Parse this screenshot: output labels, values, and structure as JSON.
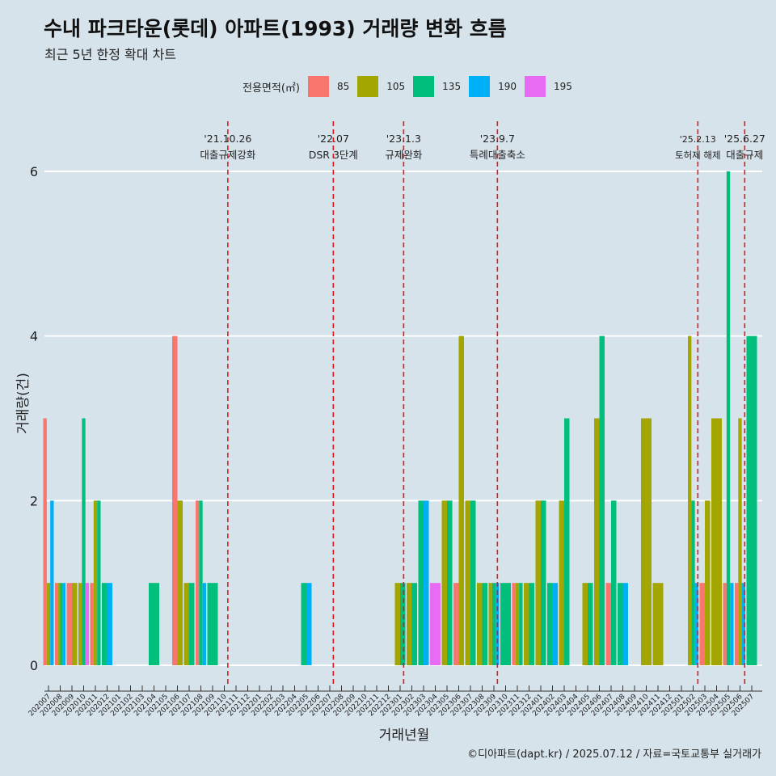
{
  "header": {
    "title": "수내 파크타운(롯데) 아파트(1993) 거래량 변화 흐름",
    "subtitle": "최근 5년 한정 확대 차트"
  },
  "caption": "©디아파트(dapt.kr) / 2025.07.12 / 자료=국토교통부 실거래가",
  "legend": {
    "title": "전용면적(㎡)",
    "items": [
      {
        "label": "85",
        "color": "#f8766d"
      },
      {
        "label": "105",
        "color": "#a3a500"
      },
      {
        "label": "135",
        "color": "#00bf7d"
      },
      {
        "label": "190",
        "color": "#00b0f6"
      },
      {
        "label": "195",
        "color": "#e76bf3"
      }
    ]
  },
  "chart_data": {
    "type": "bar",
    "xlabel": "거래년월",
    "ylabel": "거래량(건)",
    "ylim": [
      -0.5,
      6.5
    ],
    "yticks": [
      0,
      2,
      4,
      6
    ],
    "grid": true,
    "legend_position": "top",
    "categories": [
      "202007",
      "202008",
      "202009",
      "202010",
      "202011",
      "202012",
      "202101",
      "202102",
      "202103",
      "202104",
      "202105",
      "202106",
      "202107",
      "202108",
      "202109",
      "202110",
      "202111",
      "202112",
      "202201",
      "202202",
      "202203",
      "202204",
      "202205",
      "202206",
      "202207",
      "202208",
      "202209",
      "202210",
      "202211",
      "202212",
      "202301",
      "202302",
      "202303",
      "202304",
      "202305",
      "202306",
      "202307",
      "202308",
      "202309",
      "202310",
      "202311",
      "202312",
      "202401",
      "202402",
      "202403",
      "202404",
      "202405",
      "202406",
      "202407",
      "202408",
      "202409",
      "202410",
      "202411",
      "202412",
      "202501",
      "202502",
      "202503",
      "202504",
      "202505",
      "202506",
      "202507"
    ],
    "series": [
      {
        "name": "85",
        "values": [
          3,
          1,
          1,
          0,
          1,
          0,
          0,
          0,
          0,
          0,
          0,
          4,
          0,
          2,
          0,
          0,
          0,
          0,
          0,
          0,
          0,
          0,
          0,
          0,
          0,
          0,
          0,
          0,
          0,
          0,
          0,
          0,
          0,
          0,
          0,
          1,
          0,
          0,
          0,
          0,
          1,
          0,
          0,
          0,
          0,
          0,
          0,
          0,
          1,
          0,
          0,
          0,
          0,
          0,
          0,
          0,
          1,
          0,
          1,
          1,
          0
        ]
      },
      {
        "name": "105",
        "values": [
          1,
          1,
          1,
          1,
          2,
          0,
          0,
          0,
          0,
          0,
          0,
          2,
          1,
          0,
          0,
          0,
          0,
          0,
          0,
          0,
          0,
          0,
          0,
          0,
          0,
          0,
          0,
          0,
          0,
          0,
          1,
          1,
          0,
          0,
          2,
          4,
          2,
          1,
          1,
          0,
          1,
          1,
          2,
          0,
          2,
          0,
          1,
          3,
          0,
          0,
          0,
          3,
          1,
          0,
          0,
          4,
          2,
          3,
          0,
          3,
          0
        ]
      },
      {
        "name": "135",
        "values": [
          0,
          1,
          0,
          3,
          2,
          1,
          0,
          0,
          0,
          1,
          0,
          0,
          1,
          2,
          1,
          0,
          0,
          0,
          0,
          0,
          0,
          0,
          1,
          0,
          0,
          0,
          0,
          0,
          0,
          0,
          1,
          1,
          2,
          0,
          2,
          0,
          2,
          1,
          1,
          1,
          1,
          1,
          2,
          1,
          3,
          0,
          1,
          4,
          2,
          1,
          0,
          0,
          0,
          0,
          0,
          2,
          0,
          0,
          6,
          0,
          4
        ]
      },
      {
        "name": "190",
        "values": [
          2,
          1,
          0,
          0,
          0,
          1,
          0,
          0,
          0,
          0,
          0,
          0,
          0,
          1,
          0,
          0,
          0,
          0,
          0,
          0,
          0,
          0,
          1,
          0,
          0,
          0,
          0,
          0,
          0,
          0,
          0,
          0,
          2,
          0,
          0,
          0,
          0,
          0,
          1,
          0,
          0,
          0,
          0,
          1,
          0,
          0,
          0,
          0,
          0,
          1,
          0,
          0,
          0,
          0,
          0,
          1,
          0,
          0,
          1,
          1,
          0
        ]
      },
      {
        "name": "195",
        "values": [
          0,
          0,
          0,
          1,
          0,
          0,
          0,
          0,
          0,
          0,
          0,
          0,
          0,
          0,
          0,
          0,
          0,
          0,
          0,
          0,
          0,
          0,
          0,
          0,
          0,
          0,
          0,
          0,
          0,
          0,
          0,
          0,
          0,
          1,
          0,
          0,
          0,
          0,
          0,
          0,
          0,
          0,
          0,
          0,
          0,
          0,
          0,
          0,
          0,
          0,
          0,
          0,
          0,
          0,
          0,
          0,
          0,
          0,
          0,
          0,
          0
        ]
      }
    ],
    "events": [
      {
        "date": "'21.10.26",
        "label": "대출규제강화",
        "x_index": 15.3
      },
      {
        "date": "'22.07",
        "label": "DSR 3단계",
        "x_index": 24.3
      },
      {
        "date": "'23.1.3",
        "label": "규제완화",
        "x_index": 30.3
      },
      {
        "date": "'23.9.7",
        "label": "특례대출축소",
        "x_index": 38.3
      },
      {
        "date": "'25.2.13",
        "label": "토허제 해제",
        "x_index": 55.4
      },
      {
        "date": "'25.6.27",
        "label": "대출규제",
        "x_index": 59.4
      }
    ]
  }
}
